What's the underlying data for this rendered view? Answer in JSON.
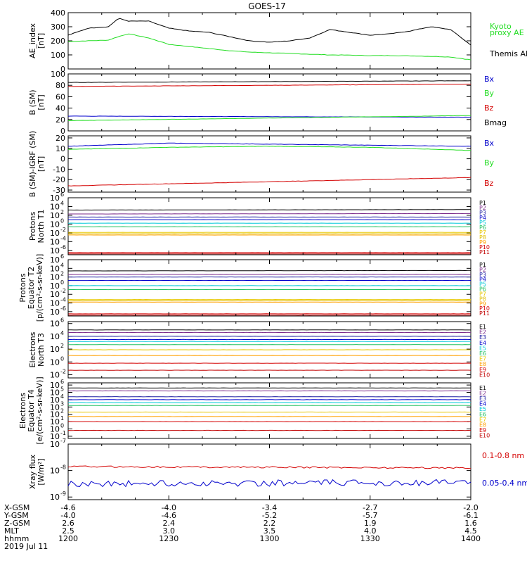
{
  "title": "GOES-17",
  "colors": {
    "black": "#000000",
    "green": "#22dd22",
    "red": "#d40000",
    "blue": "#0000cc",
    "cyan": "#00c8d8",
    "yellow": "#e8c800",
    "orange": "#ffa000"
  },
  "chart_data": [
    {
      "type": "line",
      "id": "ae",
      "ylabel": [
        "AE_index",
        "[nT]"
      ],
      "ylim": [
        0,
        400
      ],
      "yscale": "linear",
      "yticks": [
        0,
        100,
        200,
        300,
        400
      ],
      "x": [
        1200,
        1210,
        1220,
        1225,
        1230,
        1240,
        1250,
        1260,
        1270,
        1280,
        1290,
        1300,
        1310,
        1320,
        1330,
        1340,
        1350,
        1360,
        1370,
        1380,
        1390,
        1400
      ],
      "series": [
        {
          "name": "Kyoto proxy AE",
          "color": "green",
          "values": [
            195,
            200,
            205,
            230,
            250,
            220,
            175,
            160,
            145,
            130,
            120,
            115,
            110,
            105,
            100,
            98,
            95,
            95,
            93,
            90,
            85,
            65
          ]
        },
        {
          "name": "Themis AE",
          "color": "black",
          "values": [
            240,
            290,
            300,
            360,
            340,
            340,
            290,
            270,
            260,
            230,
            200,
            190,
            200,
            220,
            280,
            260,
            240,
            250,
            270,
            300,
            280,
            170
          ]
        }
      ]
    },
    {
      "type": "line",
      "id": "bsm",
      "ylabel": [
        "B (SM)",
        "[nT]"
      ],
      "ylim": [
        0,
        100
      ],
      "yscale": "linear",
      "yticks": [
        0,
        20,
        40,
        60,
        80,
        100
      ],
      "x": [
        1200,
        1400
      ],
      "series": [
        {
          "name": "Bx",
          "color": "blue",
          "values": [
            26,
            24
          ]
        },
        {
          "name": "By",
          "color": "green",
          "values": [
            18,
            27
          ]
        },
        {
          "name": "Bz",
          "color": "red",
          "values": [
            78,
            82
          ]
        },
        {
          "name": "Bmag",
          "color": "black",
          "values": [
            85,
            88
          ]
        }
      ]
    },
    {
      "type": "line",
      "id": "bigrf",
      "ylabel": [
        "B (SM)-IGRF (SM)",
        "[nT]"
      ],
      "ylim": [
        -32,
        22
      ],
      "yscale": "linear",
      "yticks": [
        -30,
        -20,
        -10,
        0,
        10,
        20
      ],
      "x": [
        1200,
        1250,
        1300,
        1350,
        1400
      ],
      "series": [
        {
          "name": "Bx",
          "color": "blue",
          "values": [
            12,
            15,
            14,
            13,
            12
          ]
        },
        {
          "name": "By",
          "color": "green",
          "values": [
            9,
            11,
            12,
            11,
            8
          ]
        },
        {
          "name": "Bz",
          "color": "red",
          "values": [
            -26,
            -24,
            -22,
            -20,
            -18
          ]
        }
      ]
    },
    {
      "type": "line",
      "id": "pn",
      "ylabel": [
        "Protons",
        "North T1"
      ],
      "yscale": "log",
      "ylim": [
        -7,
        6
      ],
      "ytick_exponents": [
        6,
        4,
        2,
        0,
        -2,
        -4,
        -6
      ],
      "x": [
        1200,
        1400
      ],
      "series": [
        {
          "name": "P1",
          "color": "black",
          "values": [
            3.2,
            3.3
          ]
        },
        {
          "name": "P2",
          "color": "#7a2a8a",
          "values": [
            2.3,
            2.4
          ]
        },
        {
          "name": "P3",
          "color": "#1a1aa0",
          "values": [
            1.6,
            1.6
          ]
        },
        {
          "name": "P4",
          "color": "blue",
          "values": [
            1.0,
            1.0
          ]
        },
        {
          "name": "P5",
          "color": "cyan",
          "values": [
            0.2,
            0.2
          ]
        },
        {
          "name": "P6",
          "color": "#20c060",
          "values": [
            -0.6,
            -0.6
          ]
        },
        {
          "name": "P7",
          "color": "yellow",
          "values": [
            -1.9,
            -1.9
          ]
        },
        {
          "name": "P8",
          "color": "#e0c000",
          "values": [
            -2.2,
            -2.2
          ]
        },
        {
          "name": "P9",
          "color": "orange",
          "values": [
            -2.5,
            -2.5
          ]
        },
        {
          "name": "P10",
          "color": "red",
          "values": [
            -6.5,
            -6.5
          ]
        },
        {
          "name": "P11",
          "color": "#c00000",
          "values": [
            -6.8,
            -6.8
          ]
        }
      ]
    },
    {
      "type": "line",
      "id": "pe",
      "ylabel": [
        "Protons",
        "Equator T2",
        "[p/(cm²-s-sr-keV)]"
      ],
      "yscale": "log",
      "ylim": [
        -7,
        6
      ],
      "ytick_exponents": [
        6,
        4,
        2,
        0,
        -2,
        -4,
        -6
      ],
      "x": [
        1200,
        1400
      ],
      "series": [
        {
          "name": "P1",
          "color": "black",
          "values": [
            3.4,
            3.5
          ]
        },
        {
          "name": "P2",
          "color": "#7a2a8a",
          "values": [
            2.6,
            2.6
          ]
        },
        {
          "name": "P3",
          "color": "#1a1aa0",
          "values": [
            2.0,
            2.0
          ]
        },
        {
          "name": "P4",
          "color": "blue",
          "values": [
            1.2,
            1.2
          ]
        },
        {
          "name": "P5",
          "color": "cyan",
          "values": [
            0.0,
            0.0
          ]
        },
        {
          "name": "P6",
          "color": "#20c060",
          "values": [
            -0.9,
            -0.9
          ]
        },
        {
          "name": "P7",
          "color": "yellow",
          "values": [
            -3.2,
            -3.2
          ]
        },
        {
          "name": "P8",
          "color": "#e0c000",
          "values": [
            -3.5,
            -3.5
          ]
        },
        {
          "name": "P9",
          "color": "orange",
          "values": [
            -3.8,
            -3.8
          ]
        },
        {
          "name": "P10",
          "color": "red",
          "values": [
            -6.5,
            -6.5
          ]
        },
        {
          "name": "P11",
          "color": "#c00000",
          "values": [
            -6.8,
            -6.8
          ]
        }
      ]
    },
    {
      "type": "line",
      "id": "en",
      "ylabel": [
        "Electrons",
        "North T3"
      ],
      "yscale": "log",
      "ylim": [
        -2.5,
        6.3
      ],
      "ytick_exponents": [
        6,
        4,
        2,
        0,
        -2
      ],
      "x": [
        1200,
        1400
      ],
      "series": [
        {
          "name": "E1",
          "color": "black",
          "values": [
            5.0,
            5.0
          ]
        },
        {
          "name": "E2",
          "color": "#7a2a8a",
          "values": [
            4.6,
            4.6
          ]
        },
        {
          "name": "E3",
          "color": "#1a1aa0",
          "values": [
            4.0,
            4.0
          ]
        },
        {
          "name": "E4",
          "color": "blue",
          "values": [
            3.5,
            3.5
          ]
        },
        {
          "name": "E5",
          "color": "cyan",
          "values": [
            3.2,
            3.2
          ]
        },
        {
          "name": "E6",
          "color": "#20c060",
          "values": [
            2.7,
            2.7
          ]
        },
        {
          "name": "E7",
          "color": "yellow",
          "values": [
            1.9,
            1.9
          ]
        },
        {
          "name": "E8",
          "color": "orange",
          "values": [
            1.0,
            1.0
          ]
        },
        {
          "name": "E9",
          "color": "red",
          "values": [
            -0.2,
            -0.2
          ]
        },
        {
          "name": "E10",
          "color": "#c00000",
          "values": [
            -1.3,
            -1.3
          ]
        }
      ]
    },
    {
      "type": "line",
      "id": "ee",
      "ylabel": [
        "Electrons",
        "Equator T4",
        "[e/(cm²-s-sr-keV)]"
      ],
      "yscale": "log",
      "ylim": [
        -1.3,
        6.3
      ],
      "ytick_exponents": [
        6,
        5,
        4,
        3,
        2,
        1,
        0,
        -1
      ],
      "x": [
        1200,
        1400
      ],
      "series": [
        {
          "name": "E1",
          "color": "black",
          "values": [
            5.6,
            5.6
          ]
        },
        {
          "name": "E2",
          "color": "#7a2a8a",
          "values": [
            5.2,
            5.2
          ]
        },
        {
          "name": "E3",
          "color": "#1a1aa0",
          "values": [
            4.4,
            4.4
          ]
        },
        {
          "name": "E4",
          "color": "blue",
          "values": [
            4.0,
            4.0
          ]
        },
        {
          "name": "E5",
          "color": "cyan",
          "values": [
            3.6,
            3.6
          ]
        },
        {
          "name": "E6",
          "color": "#20c060",
          "values": [
            3.2,
            3.2
          ]
        },
        {
          "name": "E7",
          "color": "yellow",
          "values": [
            2.3,
            2.3
          ]
        },
        {
          "name": "E8",
          "color": "orange",
          "values": [
            1.7,
            1.7
          ]
        },
        {
          "name": "E9",
          "color": "red",
          "values": [
            1.0,
            1.0
          ]
        },
        {
          "name": "E10",
          "color": "#c00000",
          "values": [
            -0.2,
            -0.2
          ]
        }
      ]
    },
    {
      "type": "line",
      "id": "xray",
      "ylabel": [
        "Xray flux",
        "[W/m²]"
      ],
      "yscale": "log",
      "ylim": [
        -9.1,
        -7
      ],
      "ytick_exponents": [
        -7,
        -8,
        -9
      ],
      "x": [
        1200,
        1400
      ],
      "series": [
        {
          "name": "0.1-0.8 nm",
          "color": "red",
          "values": [
            -7.85,
            -7.9
          ]
        },
        {
          "name": "0.05-0.4 nm",
          "color": "blue",
          "values": [
            -8.5,
            -8.45
          ]
        }
      ]
    }
  ],
  "legends": {
    "ae": [
      {
        "text": "Kyoto",
        "color": "green"
      },
      {
        "text": "proxy AE",
        "color": "green"
      },
      {
        "text": "Themis AE",
        "color": "black"
      }
    ],
    "bsm": [
      {
        "text": "Bx",
        "color": "blue"
      },
      {
        "text": "By",
        "color": "green"
      },
      {
        "text": "Bz",
        "color": "red"
      },
      {
        "text": "Bmag",
        "color": "black"
      }
    ],
    "bigrf": [
      {
        "text": "Bx",
        "color": "blue"
      },
      {
        "text": "By",
        "color": "green"
      },
      {
        "text": "Bz",
        "color": "red"
      }
    ],
    "xray": [
      {
        "text": "0.1-0.8 nm",
        "color": "red"
      },
      {
        "text": "0.05-0.4 nm",
        "color": "blue"
      }
    ]
  },
  "xaxis": {
    "row_labels": [
      "X-GSM",
      "Y-GSM",
      "Z-GSM",
      "MLT",
      "hhmm",
      "2019 Jul 11"
    ],
    "ticks": [
      {
        "x": 1200,
        "labels": [
          "-4.6",
          "-4.0",
          "2.6",
          "2.5",
          "1200"
        ]
      },
      {
        "x": 1230,
        "labels": [
          "-4.0",
          "-4.6",
          "2.4",
          "3.0",
          "1230"
        ]
      },
      {
        "x": 1300,
        "labels": [
          "-3.4",
          "-5.2",
          "2.2",
          "3.5",
          "1300"
        ]
      },
      {
        "x": 1330,
        "labels": [
          "-2.7",
          "-5.7",
          "1.9",
          "4.0",
          "1330"
        ]
      },
      {
        "x": 1400,
        "labels": [
          "-2.0",
          "-6.1",
          "1.6",
          "4.5",
          "1400"
        ]
      }
    ]
  }
}
